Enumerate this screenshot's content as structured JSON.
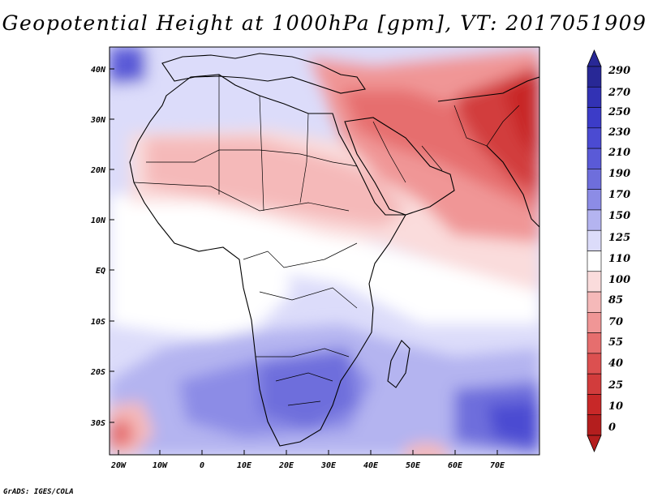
{
  "title": "Geopotential Height at 1000hPa [gpm], VT: 2017051909",
  "credit": "GrADS: IGES/COLA",
  "axes": {
    "lat_labels": [
      "40N",
      "30N",
      "20N",
      "10N",
      "EQ",
      "10S",
      "20S",
      "30S"
    ],
    "lon_labels": [
      "20W",
      "10W",
      "0",
      "10E",
      "20E",
      "30E",
      "40E",
      "50E",
      "60E",
      "70E"
    ]
  },
  "colorbar": {
    "levels": [
      "290",
      "270",
      "250",
      "230",
      "210",
      "190",
      "170",
      "150",
      "125",
      "110",
      "100",
      "85",
      "70",
      "55",
      "40",
      "25",
      "10",
      "0"
    ],
    "colors": [
      "#282896",
      "#3232b4",
      "#3c3cc8",
      "#4b4bd2",
      "#5a5ad7",
      "#6e6edc",
      "#8c8ce6",
      "#b4b4f0",
      "#dcdcfa",
      "#ffffff",
      "#fadcdc",
      "#f5b9b9",
      "#f09696",
      "#e66e6e",
      "#dc5050",
      "#d23c3c",
      "#c82828",
      "#b41e1e"
    ]
  }
}
